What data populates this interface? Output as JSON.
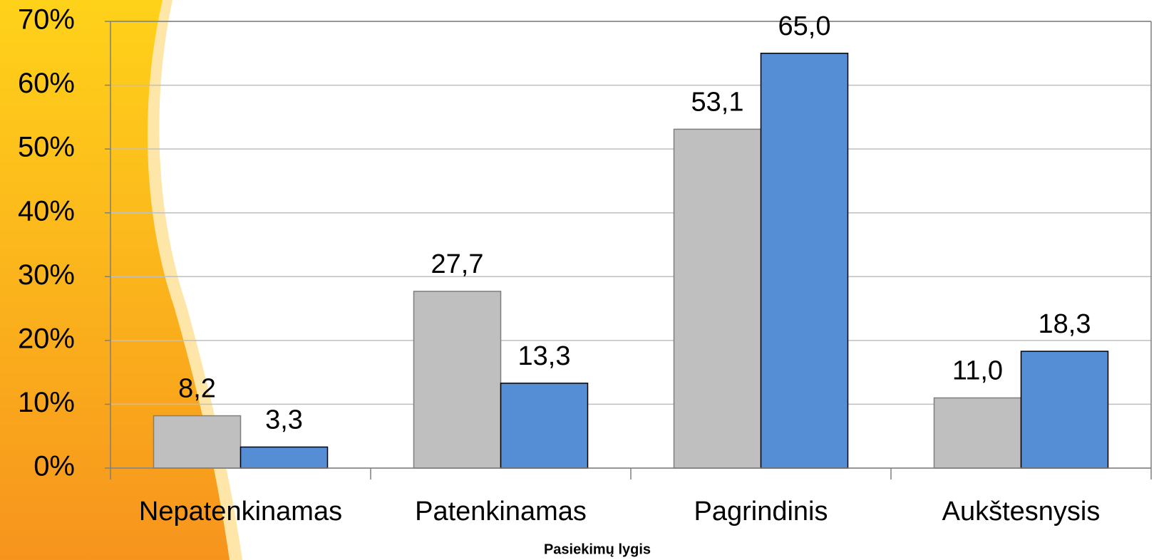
{
  "chart_data": {
    "type": "bar",
    "x_label": "Pasiekimų lygis",
    "categories": [
      "Nepatenkinamas",
      "Patenkinamas",
      "Pagrindinis",
      "Aukštesnysis"
    ],
    "series": [
      {
        "color": "#bfbfbf",
        "values": [
          8.2,
          27.7,
          53.1,
          11.0
        ],
        "value_labels": [
          "8,2",
          "27,7",
          "53,1",
          "11,0"
        ]
      },
      {
        "color": "#558ed5",
        "values": [
          3.3,
          13.3,
          65.0,
          18.3
        ],
        "value_labels": [
          "3,3",
          "13,3",
          "65,0",
          "18,3"
        ]
      }
    ],
    "ylim": [
      0,
      70
    ],
    "yticks": [
      {
        "value": 0,
        "label": "0%"
      },
      {
        "value": 10,
        "label": "10%"
      },
      {
        "value": 20,
        "label": "20%"
      },
      {
        "value": 30,
        "label": "30%"
      },
      {
        "value": 40,
        "label": "40%"
      },
      {
        "value": 50,
        "label": "50%"
      },
      {
        "value": 60,
        "label": "60%"
      },
      {
        "value": 70,
        "label": "70%"
      }
    ],
    "grid": true
  }
}
